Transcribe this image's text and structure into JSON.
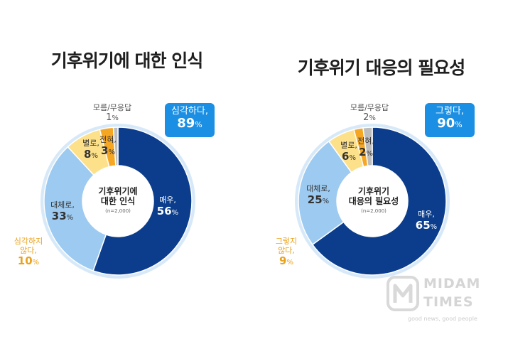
{
  "chart_data": [
    {
      "type": "pie",
      "title": "기후위기에 대한 인식",
      "center_label": [
        "기후위기에",
        "대한 인식"
      ],
      "sample_note": "(n=2,000)",
      "unit": "%",
      "slices": [
        {
          "name": "매우,",
          "value": 56,
          "color": "#0b3d8c"
        },
        {
          "name": "대체로,",
          "value": 33,
          "color": "#9ccaf0"
        },
        {
          "name": "별로,",
          "value": 8,
          "color": "#fde08a"
        },
        {
          "name": "전혀,",
          "value": 3,
          "color": "#f5a623"
        },
        {
          "name": "모름/무응답",
          "value": 1,
          "color": "#bdbdbd"
        }
      ],
      "badge": {
        "label": "심각하다,",
        "value": "89"
      },
      "side_label": {
        "label": [
          "심각하지",
          "않다,"
        ],
        "value": "10"
      }
    },
    {
      "type": "pie",
      "title": "기후위기 대응의 필요성",
      "center_label": [
        "기후위기",
        "대응의 필요성"
      ],
      "sample_note": "(n=2,000)",
      "unit": "%",
      "slices": [
        {
          "name": "매우,",
          "value": 65,
          "color": "#0b3d8c"
        },
        {
          "name": "대체로,",
          "value": 25,
          "color": "#9ccaf0"
        },
        {
          "name": "별로,",
          "value": 6,
          "color": "#fde08a"
        },
        {
          "name": "전혀,",
          "value": 2,
          "color": "#f5a623"
        },
        {
          "name": "모름/무응답",
          "value": 2,
          "color": "#bdbdbd"
        }
      ],
      "badge": {
        "label": "그렇다,",
        "value": "90"
      },
      "side_label": {
        "label": [
          "그렇지",
          "않다,"
        ],
        "value": "9"
      }
    }
  ],
  "watermark": {
    "word1": "MIDAM",
    "word2": "TIMES",
    "tagline": "good news, good people"
  }
}
